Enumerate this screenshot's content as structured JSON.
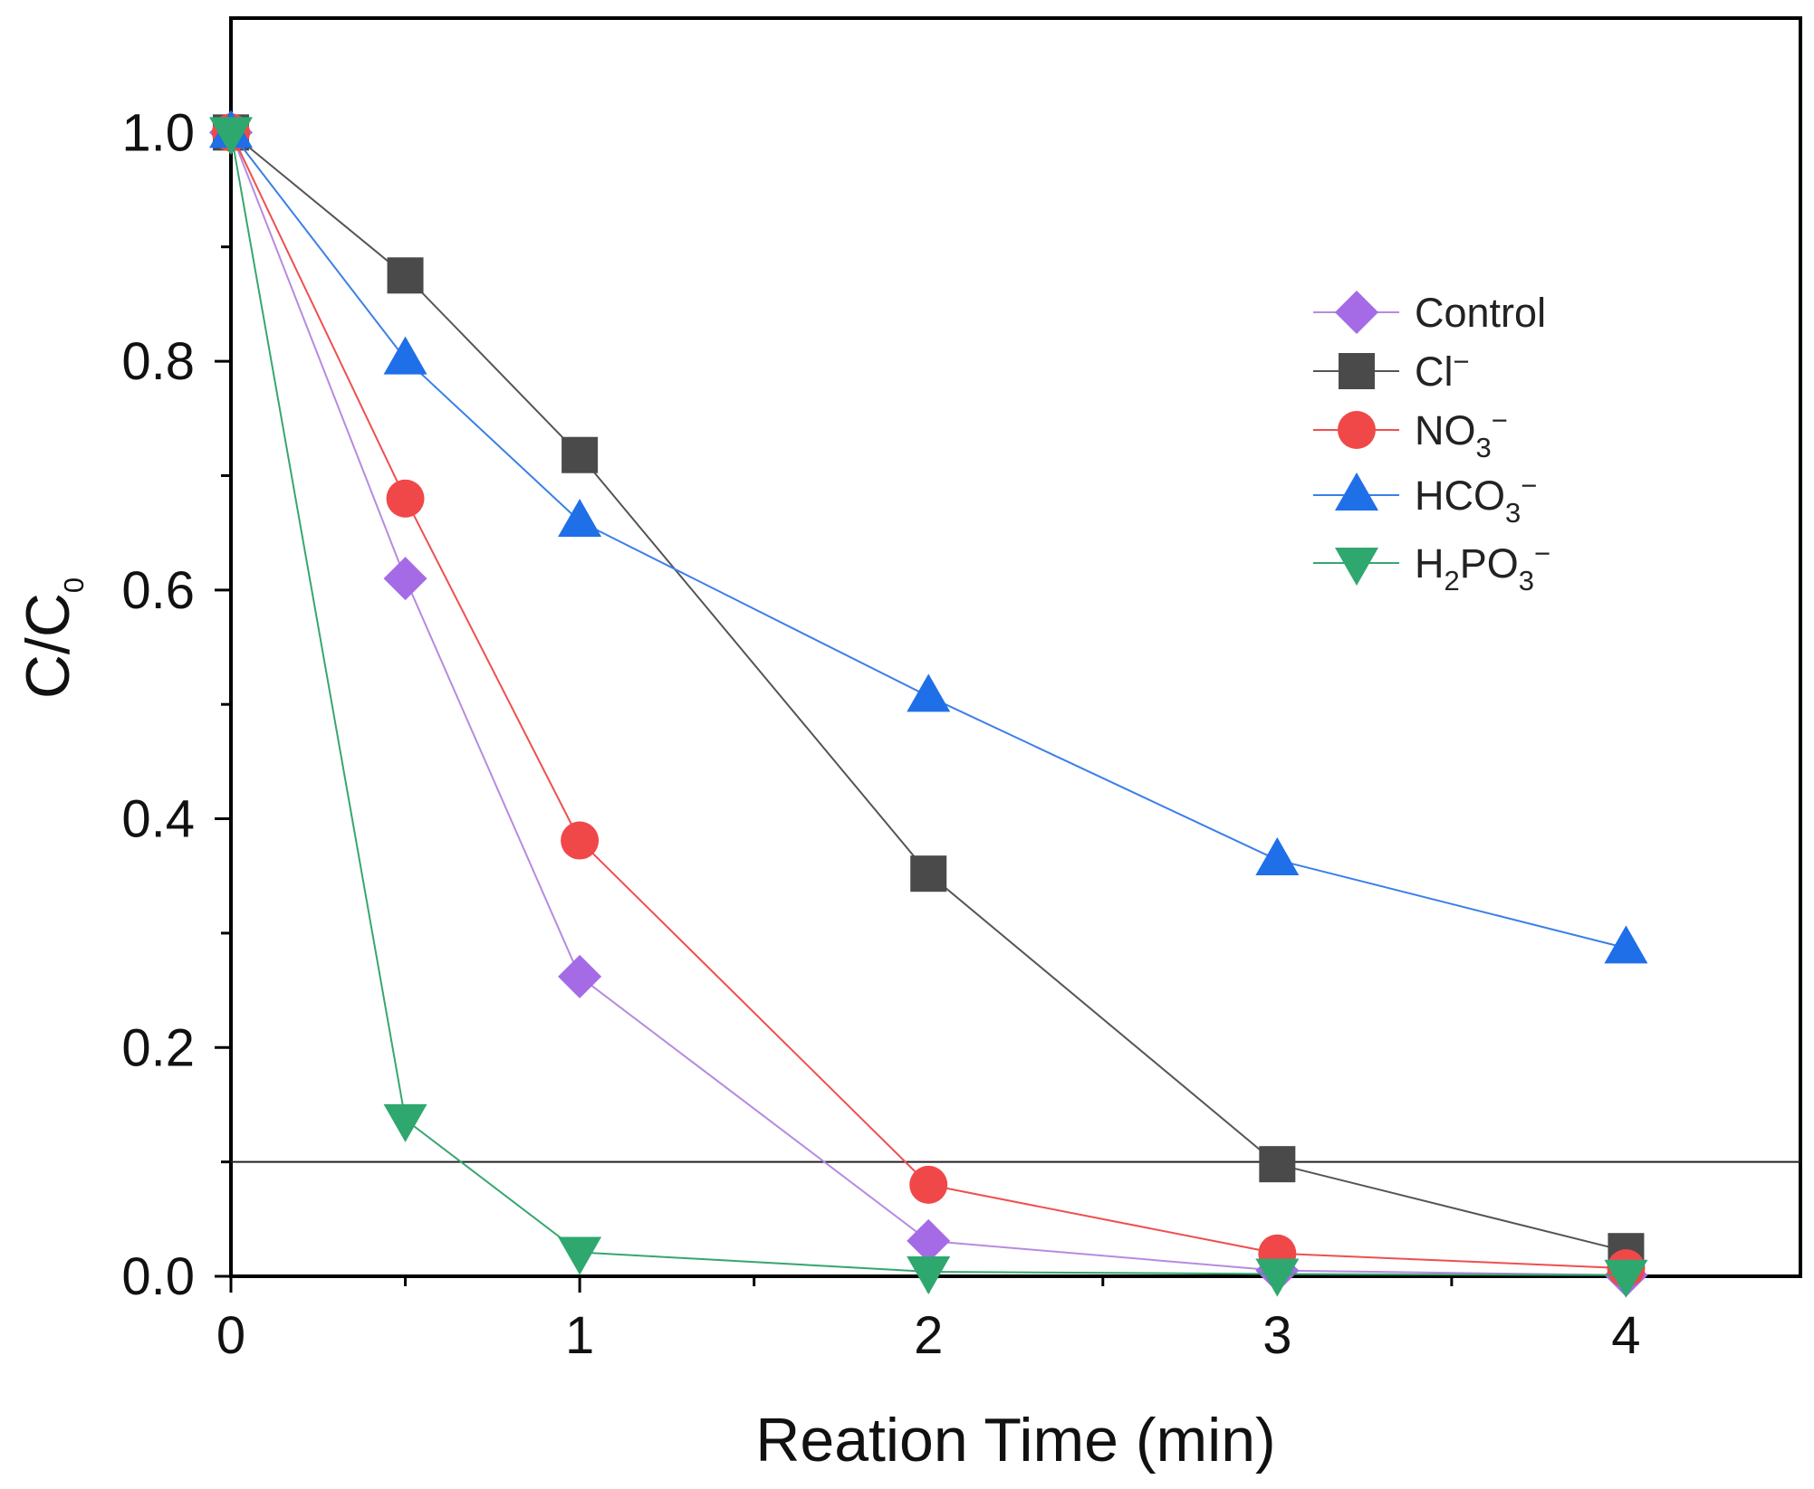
{
  "chart_data": {
    "type": "line",
    "title": "",
    "xlabel": "Reation Time (min)",
    "ylabel": {
      "main": "C/C",
      "subscript": "0"
    },
    "xlim": [
      0,
      4.5
    ],
    "ylim": [
      0,
      1.1
    ],
    "x_ticks": [
      0,
      1,
      2,
      3,
      4
    ],
    "x_tick_labels": [
      "0",
      "1",
      "2",
      "3",
      "4"
    ],
    "y_ticks": [
      0,
      0.2,
      0.4,
      0.6,
      0.8,
      1.0
    ],
    "y_tick_labels": [
      "0.0",
      "0.2",
      "0.4",
      "0.6",
      "0.8",
      "1.0"
    ],
    "x_minor_ticks": [
      0.5,
      1.5,
      2.5,
      3.5
    ],
    "y_minor_ticks": [
      0.1,
      0.3,
      0.5,
      0.7,
      0.9
    ],
    "reference_line": {
      "y": 0.1,
      "color": "#222222"
    },
    "legend": {
      "position": "top-right"
    },
    "series": [
      {
        "name": "Control",
        "label_main": "Control",
        "label_sub": "",
        "label_after_sub": "",
        "label_sup": "",
        "marker": "diamond",
        "color": "#a56be6",
        "line_color": "#b68be0",
        "x": [
          0,
          0.5,
          1,
          2,
          3,
          4
        ],
        "values": [
          1.0,
          0.61,
          0.262,
          0.031,
          0.005,
          0.001
        ]
      },
      {
        "name": "Cl⁻",
        "label_main": "Cl",
        "label_sub": "",
        "label_after_sub": "",
        "label_sup": "−",
        "marker": "square",
        "color": "#4a4a4a",
        "line_color": "#555555",
        "x": [
          0,
          0.5,
          1,
          2,
          3,
          4
        ],
        "values": [
          1.0,
          0.875,
          0.718,
          0.352,
          0.098,
          0.022
        ]
      },
      {
        "name": "NO₃⁻",
        "label_main": "NO",
        "label_sub": "3",
        "label_after_sub": "",
        "label_sup": "−",
        "marker": "circle",
        "color": "#f04848",
        "line_color": "#ef4f4f",
        "x": [
          0,
          0.5,
          1,
          2,
          3,
          4
        ],
        "values": [
          1.0,
          0.68,
          0.381,
          0.08,
          0.02,
          0.007
        ]
      },
      {
        "name": "HCO₃⁻",
        "label_main": "HCO",
        "label_sub": "3",
        "label_after_sub": "",
        "label_sup": "−",
        "marker": "triangle-up",
        "color": "#1f6fe8",
        "line_color": "#3a7fe8",
        "x": [
          0,
          0.5,
          1,
          2,
          3,
          4
        ],
        "values": [
          1.0,
          0.802,
          0.66,
          0.507,
          0.364,
          0.287
        ]
      },
      {
        "name": "H₂PO₃⁻",
        "label_main": "H",
        "label_sub": "2",
        "label_after_sub": "PO",
        "label_sub2": "3",
        "label_sup": "−",
        "marker": "triangle-down",
        "color": "#2ea86f",
        "line_color": "#37a66f",
        "x": [
          0,
          0.5,
          1,
          2,
          3,
          4
        ],
        "values": [
          1.0,
          0.137,
          0.021,
          0.004,
          0.002,
          0.001
        ]
      }
    ]
  }
}
